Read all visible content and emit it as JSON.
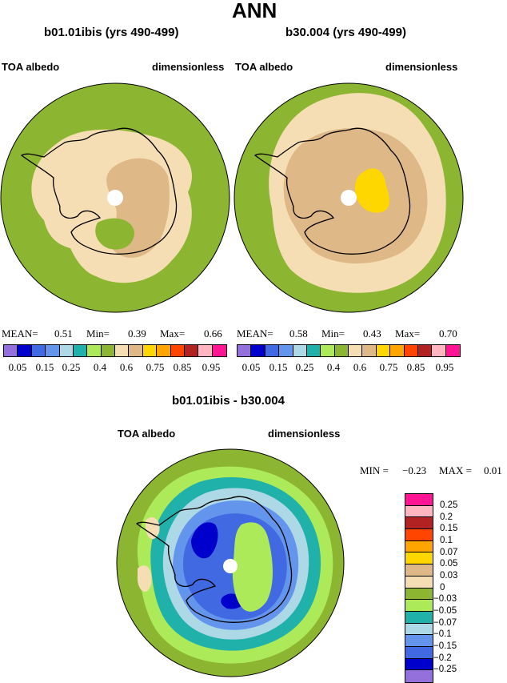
{
  "title": "ANN",
  "colors": {
    "abs_scale": [
      "#9370db",
      "#0000cd",
      "#4169e1",
      "#6495ed",
      "#add8e6",
      "#20b2aa",
      "#adea5a",
      "#8cb531",
      "#f5deb3",
      "#deb887",
      "#ffd700",
      "#ffa500",
      "#ff4500",
      "#b22222",
      "#ffb6c1",
      "#ff1493"
    ],
    "diff_scale": [
      "#9370db",
      "#0000cd",
      "#4169e1",
      "#6495ed",
      "#add8e6",
      "#20b2aa",
      "#adea5a",
      "#8cb531",
      "#f5deb3",
      "#deb887",
      "#ffd700",
      "#ffa500",
      "#ff4500",
      "#b22222",
      "#ffb6c1",
      "#ff1493"
    ],
    "ocean": "#8cb531",
    "coast": "#000000"
  },
  "chart_data": [
    {
      "type": "heatmap",
      "projection": "south-polar-stereographic",
      "title": "b01.01ibis (yrs 490-499)",
      "left_label": "TOA albedo",
      "right_label": "dimensionless",
      "stats": {
        "mean_label": "MEAN=",
        "mean": "0.51",
        "min_label": "Min=",
        "min": "0.39",
        "max_label": "Max=",
        "max": "0.66"
      },
      "colorbar_ticks": [
        "0.05",
        "0.15",
        "0.25",
        "0.4",
        "0.6",
        "0.75",
        "0.85",
        "0.95"
      ]
    },
    {
      "type": "heatmap",
      "projection": "south-polar-stereographic",
      "title": "b30.004 (yrs 490-499)",
      "left_label": "TOA albedo",
      "right_label": "dimensionless",
      "stats": {
        "mean_label": "MEAN=",
        "mean": "0.58",
        "min_label": "Min=",
        "min": "0.43",
        "max_label": "Max=",
        "max": "0.70"
      },
      "colorbar_ticks": [
        "0.05",
        "0.15",
        "0.25",
        "0.4",
        "0.6",
        "0.75",
        "0.85",
        "0.95"
      ]
    },
    {
      "type": "heatmap",
      "projection": "south-polar-stereographic",
      "title": "b01.01ibis - b30.004",
      "left_label": "TOA albedo",
      "right_label": "dimensionless",
      "stats": {
        "min_label": "MIN =",
        "min": "−0.23",
        "max_label": "MAX =",
        "max": "0.01"
      },
      "colorbar_labels": [
        "0.25",
        "0.2",
        "0.15",
        "0.1",
        "0.07",
        "0.05",
        "0.03",
        "0",
        "−0.03",
        "−0.05",
        "−0.07",
        "−0.1",
        "−0.15",
        "−0.2",
        "−0.25"
      ]
    }
  ]
}
